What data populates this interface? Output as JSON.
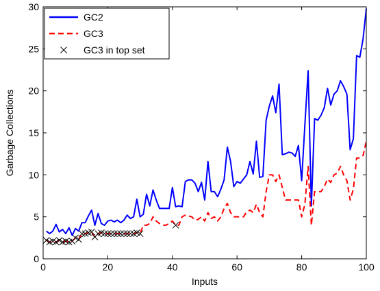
{
  "chart_data": {
    "type": "line",
    "title": "",
    "xlabel": "Inputs",
    "ylabel": "Garbage Collections",
    "xlim": [
      0,
      100
    ],
    "ylim": [
      0,
      30
    ],
    "xticks": [
      0,
      20,
      40,
      60,
      80,
      100
    ],
    "yticks": [
      0,
      5,
      10,
      15,
      20,
      25,
      30
    ],
    "grid": false,
    "legend_position": "top-left",
    "series": [
      {
        "name": "GC2",
        "style": "solid",
        "marker": "none",
        "color": "#0000ff",
        "x": [
          1,
          2,
          3,
          4,
          5,
          6,
          7,
          8,
          9,
          10,
          11,
          12,
          13,
          14,
          15,
          16,
          17,
          18,
          19,
          20,
          21,
          22,
          23,
          24,
          25,
          26,
          27,
          28,
          29,
          30,
          31,
          32,
          33,
          34,
          35,
          36,
          37,
          38,
          39,
          40,
          41,
          42,
          43,
          44,
          45,
          46,
          47,
          48,
          49,
          50,
          51,
          52,
          53,
          54,
          55,
          56,
          57,
          58,
          59,
          60,
          61,
          62,
          63,
          64,
          65,
          66,
          67,
          68,
          69,
          70,
          71,
          72,
          73,
          74,
          75,
          76,
          77,
          78,
          79,
          80,
          81,
          82,
          83,
          84,
          85,
          86,
          87,
          88,
          89,
          90,
          91,
          92,
          93,
          94,
          95,
          96,
          97,
          98,
          99,
          100
        ],
        "values": [
          3.3,
          3.0,
          3.3,
          4.1,
          3.2,
          3.5,
          3.0,
          3.7,
          2.8,
          3.6,
          3.3,
          4.3,
          4.3,
          5.1,
          5.8,
          4.0,
          5.4,
          4.2,
          4.0,
          4.5,
          4.6,
          4.4,
          4.6,
          4.3,
          4.6,
          5.2,
          4.8,
          5.0,
          7.1,
          5.0,
          5.3,
          7.7,
          6.3,
          8.2,
          7.0,
          6.0,
          6.0,
          6.0,
          6.0,
          8.5,
          6.2,
          6.3,
          6.2,
          9.2,
          9.4,
          9.4,
          9.0,
          8.0,
          9.1,
          7.0,
          11.6,
          8.0,
          8.0,
          7.4,
          8.3,
          9.4,
          13.3,
          11.6,
          8.6,
          9.2,
          9.0,
          9.5,
          10.0,
          11.6,
          10.1,
          14.0,
          9.7,
          9.8,
          16.5,
          18.2,
          19.4,
          17.4,
          20.8,
          12.4,
          12.5,
          12.7,
          12.6,
          12.2,
          13.5,
          9.3,
          16.0,
          22.4,
          6.3,
          16.7,
          16.5,
          17.1,
          18.0,
          20.3,
          18.3,
          19.6,
          20.0,
          21.2,
          20.5,
          19.6,
          13.0,
          14.3,
          24.2,
          24.0,
          26.2,
          29.8
        ]
      },
      {
        "name": "GC3",
        "style": "dashed",
        "marker": "none",
        "color": "#ff0000",
        "x": [
          1,
          2,
          3,
          4,
          5,
          6,
          7,
          8,
          9,
          10,
          11,
          12,
          13,
          14,
          15,
          16,
          17,
          18,
          19,
          20,
          21,
          22,
          23,
          24,
          25,
          26,
          27,
          28,
          29,
          30,
          31,
          32,
          33,
          34,
          35,
          36,
          37,
          38,
          39,
          40,
          41,
          42,
          43,
          44,
          45,
          46,
          47,
          48,
          49,
          50,
          51,
          52,
          53,
          54,
          55,
          56,
          57,
          58,
          59,
          60,
          61,
          62,
          63,
          64,
          65,
          66,
          67,
          68,
          69,
          70,
          71,
          72,
          73,
          74,
          75,
          76,
          77,
          78,
          79,
          80,
          81,
          82,
          83,
          84,
          85,
          86,
          87,
          88,
          89,
          90,
          91,
          92,
          93,
          94,
          95,
          96,
          97,
          98,
          99,
          100
        ],
        "values": [
          2.2,
          2.0,
          2.1,
          2.0,
          2.2,
          2.0,
          2.1,
          2.0,
          2.1,
          2.5,
          2.3,
          3.0,
          3.0,
          3.1,
          3.2,
          2.6,
          3.0,
          3.1,
          3.0,
          3.0,
          3.0,
          3.0,
          3.0,
          3.0,
          3.0,
          3.0,
          3.0,
          3.0,
          3.1,
          3.0,
          4.0,
          4.0,
          4.2,
          5.0,
          4.5,
          4.2,
          4.0,
          4.0,
          4.2,
          4.5,
          4.0,
          4.0,
          5.0,
          5.2,
          5.1,
          5.0,
          4.6,
          4.7,
          5.0,
          4.5,
          5.5,
          4.8,
          5.0,
          4.5,
          5.0,
          6.0,
          6.6,
          5.5,
          5.0,
          5.0,
          5.0,
          5.0,
          5.6,
          5.8,
          5.5,
          6.5,
          5.5,
          5.0,
          8.0,
          10.0,
          10.0,
          9.2,
          10.0,
          8.5,
          7.0,
          7.0,
          7.0,
          7.0,
          7.0,
          5.0,
          6.5,
          11.0,
          4.0,
          8.0,
          8.0,
          8.0,
          8.6,
          9.5,
          9.1,
          10.0,
          10.2,
          11.0,
          10.0,
          9.3,
          7.0,
          8.3,
          12.0,
          12.0,
          12.3,
          14.0
        ]
      },
      {
        "name": "GC3 in top set",
        "style": "none",
        "marker": "x",
        "color": "#000000",
        "x": [
          1,
          2,
          3,
          4,
          5,
          6,
          7,
          8,
          9,
          10,
          11,
          12,
          13,
          14,
          15,
          16,
          17,
          18,
          19,
          20,
          21,
          22,
          23,
          24,
          25,
          26,
          27,
          28,
          29,
          30,
          41
        ],
        "values": [
          2.2,
          2.0,
          2.1,
          2.0,
          2.2,
          2.0,
          2.1,
          2.0,
          2.1,
          2.5,
          2.3,
          3.0,
          3.0,
          3.1,
          3.2,
          2.6,
          3.0,
          3.1,
          3.0,
          3.0,
          3.0,
          3.0,
          3.0,
          3.0,
          3.0,
          3.0,
          3.0,
          3.0,
          3.1,
          3.0,
          4.0
        ]
      }
    ]
  }
}
